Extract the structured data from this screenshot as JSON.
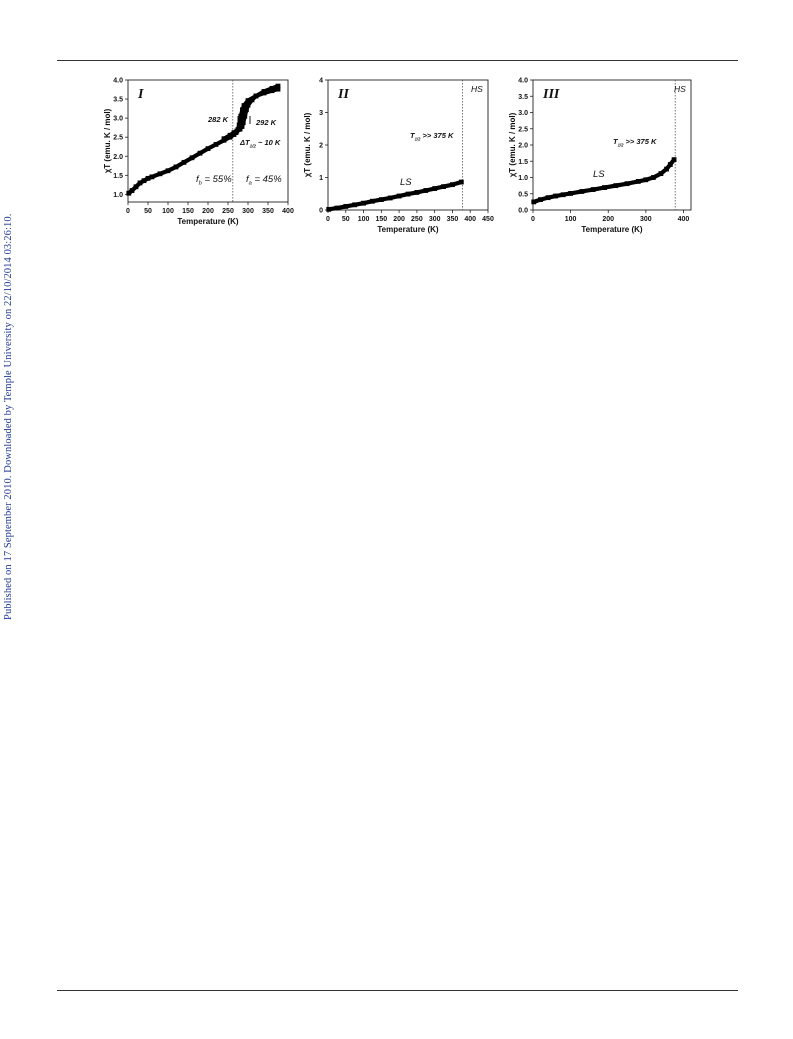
{
  "side_note": "Published on 17 September 2010. Downloaded by Temple University on 22/10/2014 03:26:10.",
  "chart_data": [
    {
      "type": "scatter",
      "panel_label": "I",
      "xlabel": "Temperature (K)",
      "ylabel": "χT (emu. K / mol)",
      "xlim": [
        0,
        400
      ],
      "ylim": [
        0.8,
        4.0
      ],
      "xticks": [
        0,
        50,
        100,
        150,
        200,
        250,
        300,
        350,
        400
      ],
      "yticks": [
        1.0,
        1.5,
        2.0,
        2.5,
        3.0,
        3.5,
        4.0
      ],
      "ytick_labels": [
        "1.0",
        "1.5",
        "2.0",
        "2.5",
        "3.0",
        "3.5",
        "4.0"
      ],
      "vline_x": 262,
      "series": [
        {
          "direction": "cooling",
          "x": [
            2,
            10,
            20,
            30,
            40,
            50,
            60,
            80,
            100,
            120,
            140,
            160,
            180,
            200,
            220,
            240,
            255,
            265,
            270,
            275,
            278,
            282,
            286,
            290,
            300,
            320,
            340,
            360,
            375
          ],
          "y": [
            1.03,
            1.1,
            1.2,
            1.3,
            1.36,
            1.42,
            1.46,
            1.54,
            1.62,
            1.72,
            1.84,
            1.96,
            2.08,
            2.2,
            2.31,
            2.42,
            2.5,
            2.57,
            2.62,
            2.7,
            2.82,
            3.05,
            3.22,
            3.33,
            3.46,
            3.58,
            3.66,
            3.72,
            3.76
          ]
        },
        {
          "direction": "heating",
          "x": [
            240,
            255,
            265,
            272,
            280,
            285,
            288,
            292,
            296,
            300,
            310,
            320,
            340,
            360,
            375
          ],
          "y": [
            2.46,
            2.55,
            2.62,
            2.66,
            2.71,
            2.78,
            2.88,
            3.05,
            3.22,
            3.34,
            3.48,
            3.58,
            3.7,
            3.78,
            3.84
          ]
        }
      ],
      "annotations": {
        "t_down": "282 K",
        "t_up": "292 K",
        "delta_prefix": "ΔT",
        "delta_sub": "1/2",
        "delta_suffix": " ~ 10 K",
        "fb_prefix": "f",
        "fb_sub": "b",
        "fb_suffix": " = 55%",
        "fa_prefix": "f",
        "fa_sub": "a",
        "fa_suffix": " = 45%"
      }
    },
    {
      "type": "scatter",
      "panel_label": "II",
      "xlabel": "Temperature (K)",
      "ylabel": "χT (emu. K / mol)",
      "xlim": [
        0,
        450
      ],
      "ylim": [
        0,
        4
      ],
      "xticks": [
        0,
        50,
        100,
        150,
        200,
        250,
        300,
        350,
        400,
        450
      ],
      "yticks": [
        0,
        1,
        2,
        3,
        4
      ],
      "ytick_labels": [
        "0",
        "1",
        "2",
        "3",
        "4"
      ],
      "vline_x": 378,
      "series": [
        {
          "x": [
            2,
            25,
            50,
            75,
            100,
            125,
            150,
            175,
            200,
            225,
            250,
            275,
            300,
            325,
            350,
            375
          ],
          "y": [
            0.02,
            0.06,
            0.11,
            0.16,
            0.21,
            0.27,
            0.32,
            0.37,
            0.43,
            0.49,
            0.54,
            0.6,
            0.66,
            0.72,
            0.78,
            0.86
          ]
        }
      ],
      "annotations": {
        "hs": "HS",
        "ls": "LS",
        "t_prefix": "T",
        "t_sub": "1/2",
        "t_suffix": " >> 375 K"
      }
    },
    {
      "type": "scatter",
      "panel_label": "III",
      "xlabel": "Temperature (K)",
      "ylabel": "χT (emu. K / mol)",
      "xlim": [
        0,
        420
      ],
      "ylim": [
        0,
        4.0
      ],
      "xticks": [
        0,
        100,
        200,
        300,
        400
      ],
      "yticks": [
        0,
        0.5,
        1.0,
        1.5,
        2.0,
        2.5,
        3.0,
        3.5,
        4.0
      ],
      "ytick_labels": [
        "0.0",
        "0.5",
        "1.0",
        "1.5",
        "2.0",
        "2.5",
        "3.0",
        "3.5",
        "4.0"
      ],
      "vline_x": 378,
      "series": [
        {
          "x": [
            2,
            20,
            40,
            60,
            80,
            100,
            130,
            160,
            190,
            220,
            250,
            280,
            300,
            320,
            340,
            355,
            365,
            375
          ],
          "y": [
            0.25,
            0.32,
            0.38,
            0.43,
            0.47,
            0.51,
            0.57,
            0.63,
            0.69,
            0.75,
            0.81,
            0.88,
            0.93,
            1.0,
            1.12,
            1.26,
            1.4,
            1.55
          ]
        }
      ],
      "annotations": {
        "hs": "HS",
        "ls": "LS",
        "t_prefix": "T",
        "t_sub": "1/2",
        "t_suffix": " >> 375 K"
      }
    }
  ]
}
